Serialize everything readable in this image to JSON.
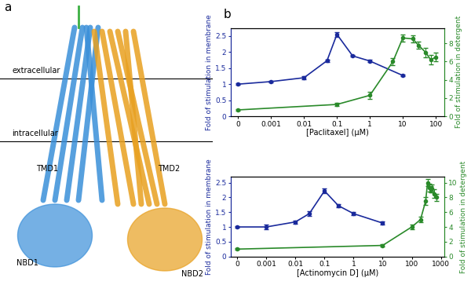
{
  "panel_labels": [
    "a",
    "b"
  ],
  "diagram": {
    "membrane": [
      "extracellular",
      "intracellular"
    ],
    "domains": [
      "TMD1",
      "TMD2",
      "NBD1",
      "NBD2"
    ]
  },
  "chart_data": [
    {
      "type": "line",
      "xlabel": "[Paclitaxel] (μM)",
      "ylabel": "Fold of stimulation in membrane",
      "y2label": "Fold of stimulation in detergent",
      "log": "x",
      "xlim": [
        6e-05,
        180
      ],
      "xticks": [
        {
          "value": 0.0001,
          "label": "0"
        },
        0.001,
        0.01,
        0.1,
        1,
        10,
        100
      ],
      "ylim": [
        0,
        2.75
      ],
      "yticks": [
        0,
        0.5,
        1,
        1.5,
        2,
        2.5
      ],
      "y2lim": [
        0,
        9.7
      ],
      "y2ticks": [
        0,
        2,
        4,
        6,
        8
      ],
      "series": [
        {
          "color": "#1a2a9c",
          "marker": "circle",
          "x": [
            0.0001,
            0.001,
            0.01,
            0.05,
            0.1,
            0.3,
            1,
            10
          ],
          "values": [
            1.0,
            1.08,
            1.2,
            1.73,
            2.55,
            1.88,
            1.72,
            1.27
          ],
          "errors": [
            0.02,
            0.03,
            0.05,
            0.03,
            0.07,
            0.03,
            0.03,
            0.03
          ]
        },
        {
          "color": "#2a8a2a",
          "marker": "circle",
          "axis": "y2",
          "x": [
            0.0001,
            0.1,
            1,
            5,
            10,
            20,
            30,
            50,
            70,
            100
          ],
          "values": [
            0.7,
            1.3,
            2.3,
            6.0,
            8.6,
            8.5,
            7.8,
            7.0,
            6.2,
            6.5
          ],
          "errors": [
            0.1,
            0.2,
            0.4,
            0.4,
            0.4,
            0.4,
            0.4,
            0.5,
            0.5,
            0.5
          ]
        }
      ]
    },
    {
      "type": "line",
      "xlabel": "[Actinomycin D] (μM)",
      "ylabel": "Fold of stimulation in membrane",
      "y2label": "Fold of stimulation in detergent",
      "log": "x",
      "xlim": [
        6e-05,
        1300
      ],
      "xticks": [
        {
          "value": 0.0001,
          "label": "0"
        },
        0.001,
        0.01,
        0.1,
        1,
        10,
        100,
        1000
      ],
      "ylim": [
        0,
        2.7
      ],
      "yticks": [
        0,
        0.5,
        1,
        1.5,
        2,
        2.5
      ],
      "y2lim": [
        0,
        10.8
      ],
      "y2ticks": [
        0,
        2,
        4,
        6,
        8,
        10
      ],
      "series": [
        {
          "color": "#1a2a9c",
          "marker": "circle",
          "x": [
            0.0001,
            0.001,
            0.01,
            0.03,
            0.1,
            0.3,
            1,
            10
          ],
          "values": [
            1.0,
            1.0,
            1.17,
            1.45,
            2.22,
            1.72,
            1.45,
            1.13
          ],
          "errors": [
            0.03,
            0.08,
            0.05,
            0.07,
            0.08,
            0.06,
            0.05,
            0.05
          ]
        },
        {
          "color": "#2a8a2a",
          "marker": "circle",
          "axis": "y2",
          "x": [
            0.0001,
            10,
            100,
            200,
            300,
            350,
            400,
            450,
            500,
            600,
            700
          ],
          "values": [
            1.0,
            1.5,
            4.0,
            5.0,
            7.5,
            10.0,
            9.3,
            9.1,
            9.2,
            8.5,
            8.0
          ],
          "errors": [
            0.1,
            0.2,
            0.3,
            0.4,
            0.5,
            0.5,
            0.5,
            0.4,
            0.5,
            0.6,
            0.5
          ]
        }
      ]
    }
  ]
}
